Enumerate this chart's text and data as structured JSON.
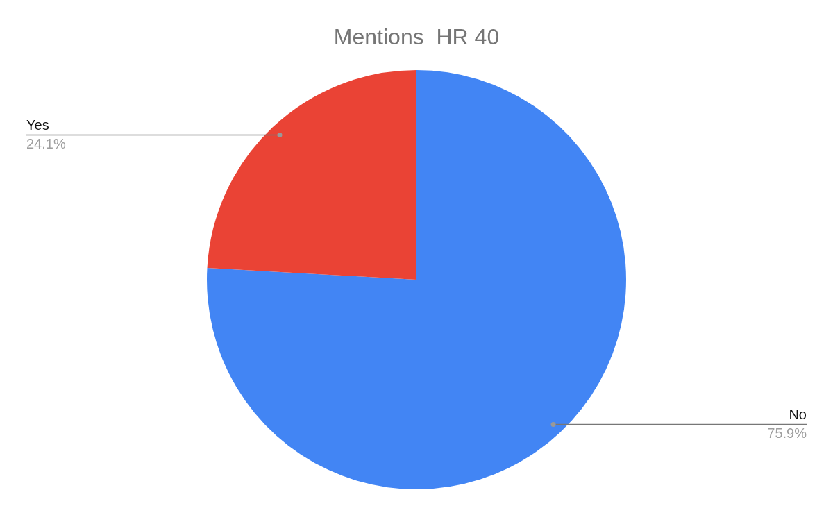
{
  "chart_data": {
    "type": "pie",
    "title": "Mentions  HR 40",
    "categories": [
      "No",
      "Yes"
    ],
    "values": [
      75.9,
      24.1
    ],
    "colors": [
      "#4285f4",
      "#ea4335"
    ],
    "value_labels": [
      "75.9%",
      "24.1%"
    ],
    "legend": false
  }
}
